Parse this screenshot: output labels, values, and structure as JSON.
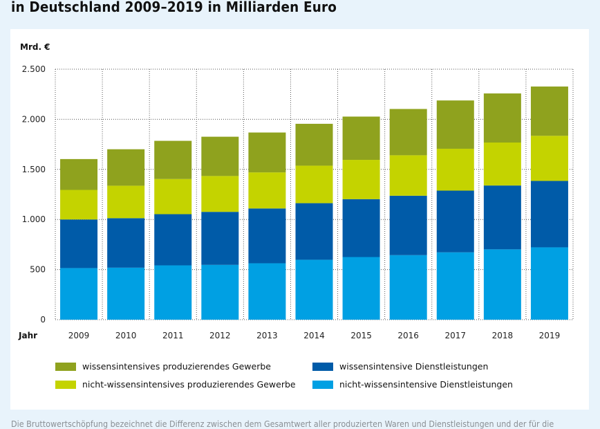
{
  "page": {
    "title": "in Deutschland 2009–2019 in Milliarden Euro",
    "footer_text": "Die Bruttowertschöpfung bezeichnet die Differenz zwischen dem Gesamtwert aller produzierten Waren und Dienstleistungen und der für die"
  },
  "colors": {
    "page_background": "#e8f3fb",
    "card_background": "#ffffff",
    "wissensintensives_produzierendes_gewerbe": "#8fa21e",
    "nicht_wissensintensives_produzierendes_gewerbe": "#c4d300",
    "wissensintensive_dienstleistungen": "#005ba8",
    "nicht_wissensintensive_dienstleistungen": "#00a0e3"
  },
  "chart_data": {
    "type": "bar",
    "stacked": true,
    "title": "in Deutschland 2009–2019 in Milliarden Euro",
    "ylabel": "Mrd. €",
    "xlabel": "Jahr",
    "ylim": [
      0,
      2500
    ],
    "yticks": [
      0,
      500,
      1000,
      1500,
      2000,
      2500
    ],
    "ytick_labels": [
      "0",
      "500",
      "1.000",
      "1.500",
      "2.000",
      "2.500"
    ],
    "grid": true,
    "legend_position": "bottom",
    "categories": [
      "2009",
      "2010",
      "2011",
      "2012",
      "2013",
      "2014",
      "2015",
      "2016",
      "2017",
      "2018",
      "2019"
    ],
    "series": [
      {
        "name": "nicht-wissensintensive Dienstleistungen",
        "color": "#00a0e3",
        "values": [
          515,
          519,
          542,
          547,
          563,
          598,
          625,
          644,
          672,
          702,
          722
        ]
      },
      {
        "name": "wissensintensive Dienstleistungen",
        "color": "#005ba8",
        "values": [
          485,
          494,
          511,
          529,
          547,
          565,
          578,
          593,
          616,
          637,
          663
        ]
      },
      {
        "name": "nicht-wissensintensives produzierendes Gewerbe",
        "color": "#c4d300",
        "values": [
          295,
          324,
          351,
          358,
          360,
          374,
          392,
          404,
          418,
          429,
          450
        ]
      },
      {
        "name": "wissensintensives produzierendes Gewerbe",
        "color": "#8fa21e",
        "values": [
          308,
          364,
          381,
          392,
          398,
          418,
          432,
          462,
          482,
          490,
          492
        ]
      }
    ],
    "legend": [
      {
        "label": "wissensintensives produzierendes Gewerbe",
        "color": "#8fa21e"
      },
      {
        "label": "wissensintensive Dienstleistungen",
        "color": "#005ba8"
      },
      {
        "label": "nicht-wissensintensives produzierendes Gewerbe",
        "color": "#c4d300"
      },
      {
        "label": "nicht-wissensintensive Dienstleistungen",
        "color": "#00a0e3"
      }
    ]
  }
}
